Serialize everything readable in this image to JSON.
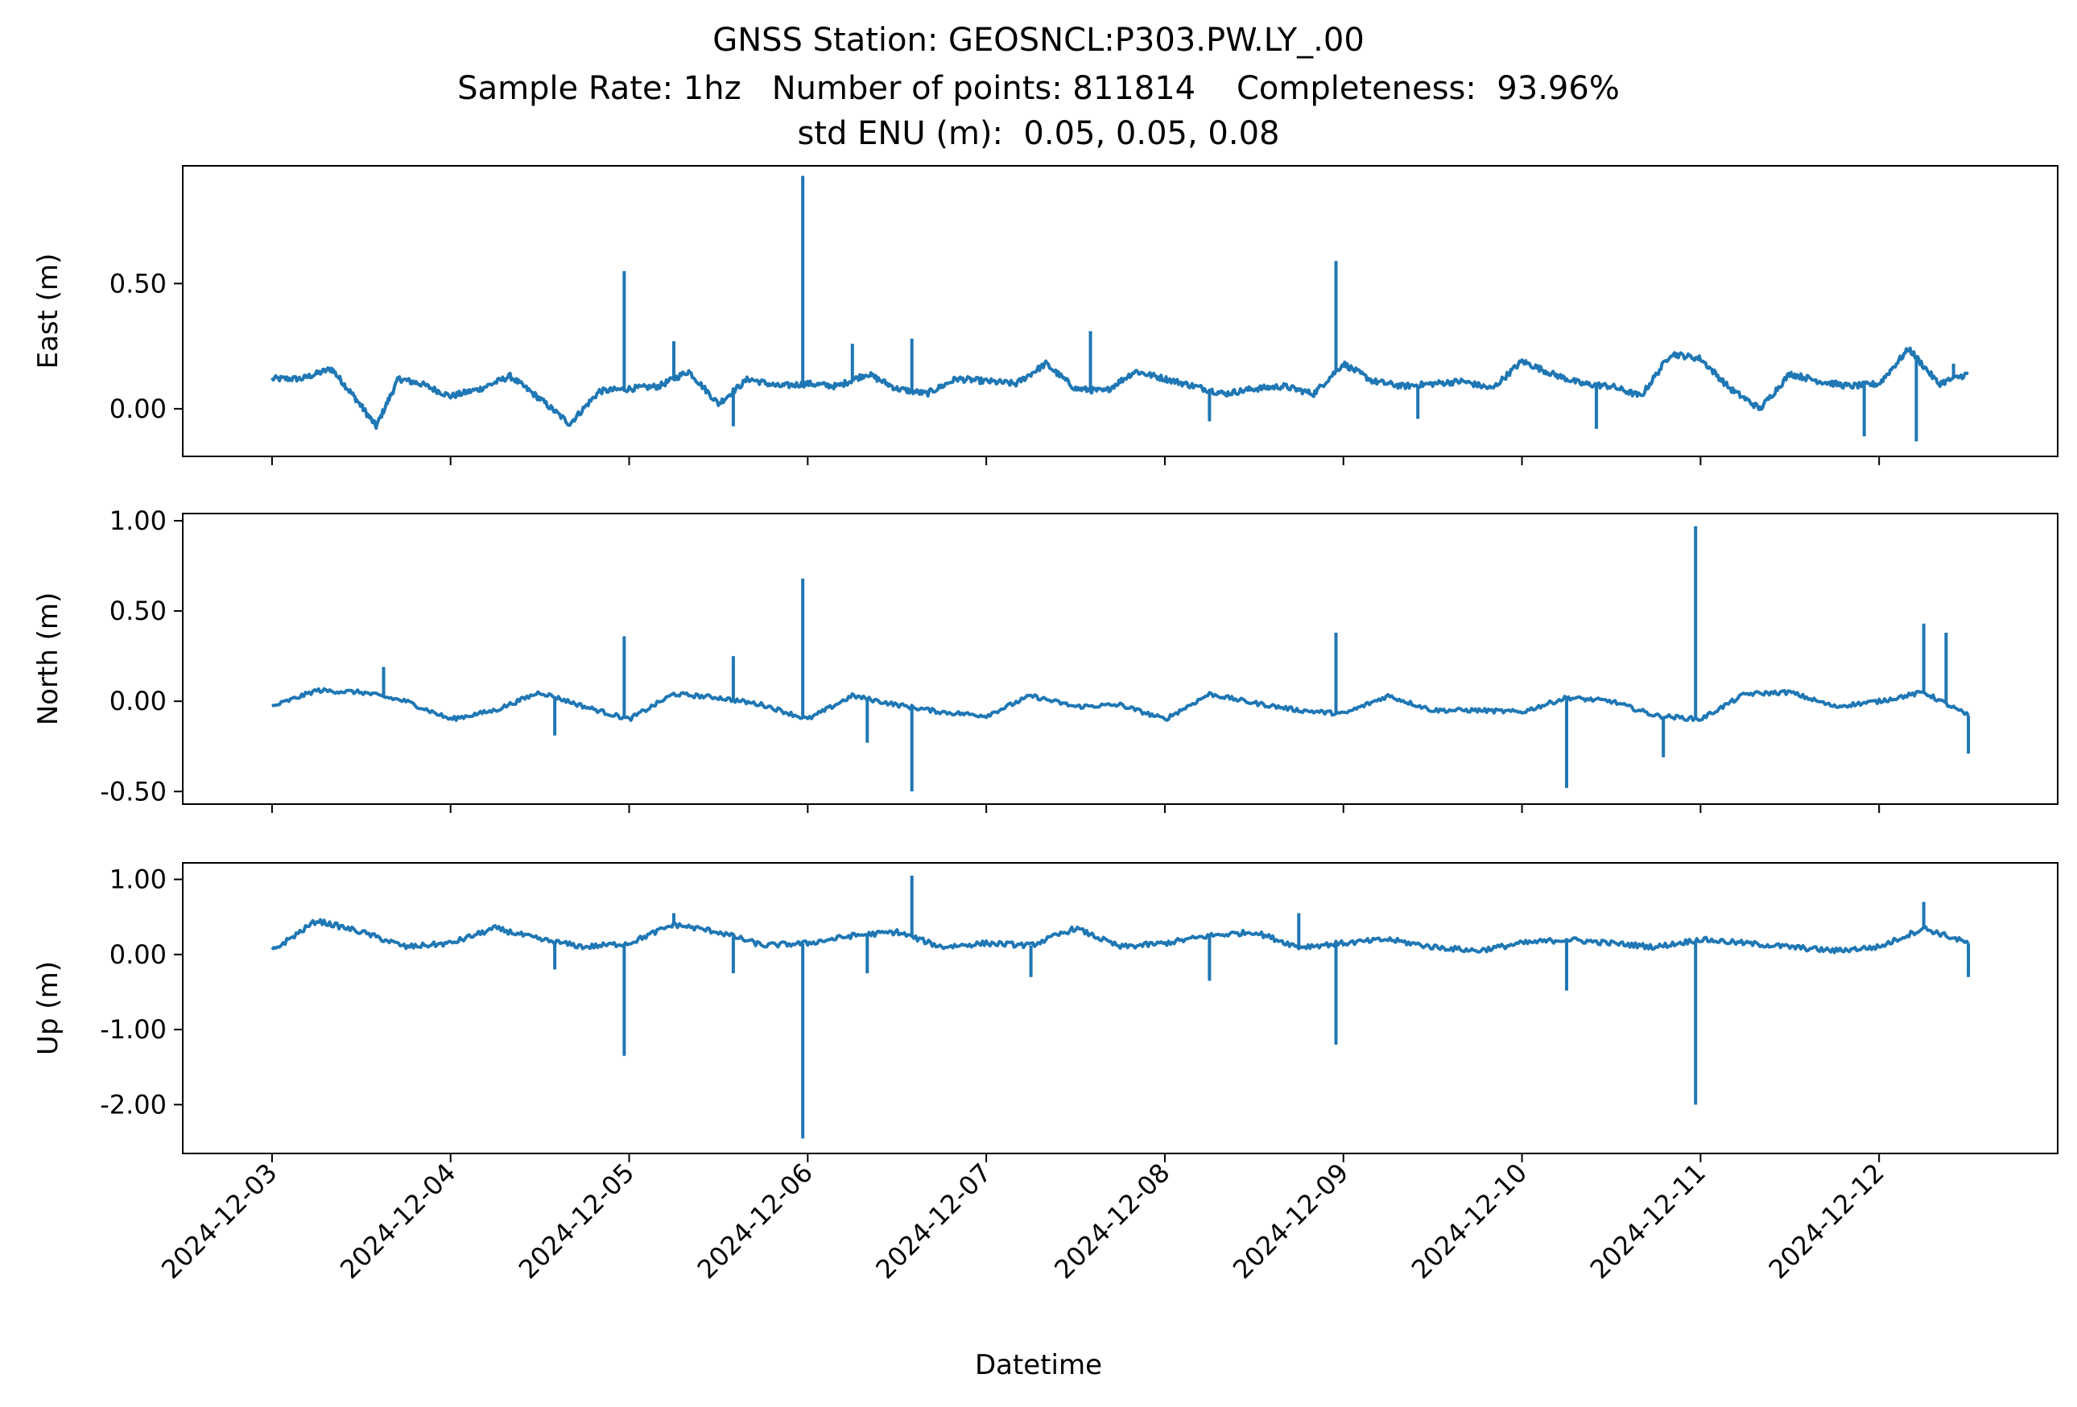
{
  "chart_data": {
    "type": "line",
    "title": "GNSS Station: GEOSNCL:P303.PW.LY_.00",
    "subtitle": "Sample Rate: 1hz   Number of points: 811814    Completeness:  93.96%",
    "subtitle2": "std ENU (m):  0.05, 0.05, 0.08",
    "xlabel": "Datetime",
    "x_ticks": [
      "2024-12-03",
      "2024-12-04",
      "2024-12-05",
      "2024-12-06",
      "2024-12-07",
      "2024-12-08",
      "2024-12-09",
      "2024-12-10",
      "2024-12-11",
      "2024-12-12"
    ],
    "x_range": [
      "2024-12-02 12:00",
      "2024-12-13 00:00"
    ],
    "line_color": "#1f77b4",
    "grid": false,
    "panels": [
      {
        "name": "East",
        "ylabel": "East (m)",
        "ylim": [
          -0.19,
          0.97
        ],
        "yticks": [
          0.0,
          0.5
        ],
        "ytick_labels": [
          "0.00",
          "0.50"
        ],
        "series": [
          {
            "x": "2024-12-03 00:00",
            "y": 0.12
          },
          {
            "x": "2024-12-03 04:00",
            "y": 0.12
          },
          {
            "x": "2024-12-03 08:00",
            "y": 0.16
          },
          {
            "x": "2024-12-03 11:00",
            "y": 0.05
          },
          {
            "x": "2024-12-03 14:00",
            "y": -0.07
          },
          {
            "x": "2024-12-03 17:00",
            "y": 0.12
          },
          {
            "x": "2024-12-03 20:00",
            "y": 0.1
          },
          {
            "x": "2024-12-04 00:00",
            "y": 0.05
          },
          {
            "x": "2024-12-04 04:00",
            "y": 0.08
          },
          {
            "x": "2024-12-04 08:00",
            "y": 0.13
          },
          {
            "x": "2024-12-04 12:00",
            "y": 0.04
          },
          {
            "x": "2024-12-04 16:00",
            "y": -0.06
          },
          {
            "x": "2024-12-04 20:00",
            "y": 0.07
          },
          {
            "x": "2024-12-05 00:00",
            "y": 0.08
          },
          {
            "x": "2024-12-05 04:00",
            "y": 0.09
          },
          {
            "x": "2024-12-05 08:00",
            "y": 0.15
          },
          {
            "x": "2024-12-05 12:00",
            "y": 0.02
          },
          {
            "x": "2024-12-05 16:00",
            "y": 0.12
          },
          {
            "x": "2024-12-05 20:00",
            "y": 0.09
          },
          {
            "x": "2024-12-06 00:00",
            "y": 0.1
          },
          {
            "x": "2024-12-06 04:00",
            "y": 0.09
          },
          {
            "x": "2024-12-06 08:00",
            "y": 0.14
          },
          {
            "x": "2024-12-06 12:00",
            "y": 0.08
          },
          {
            "x": "2024-12-06 16:00",
            "y": 0.06
          },
          {
            "x": "2024-12-06 20:00",
            "y": 0.12
          },
          {
            "x": "2024-12-07 00:00",
            "y": 0.11
          },
          {
            "x": "2024-12-07 04:00",
            "y": 0.1
          },
          {
            "x": "2024-12-07 08:00",
            "y": 0.18
          },
          {
            "x": "2024-12-07 12:00",
            "y": 0.08
          },
          {
            "x": "2024-12-07 16:00",
            "y": 0.07
          },
          {
            "x": "2024-12-07 20:00",
            "y": 0.15
          },
          {
            "x": "2024-12-08 00:00",
            "y": 0.12
          },
          {
            "x": "2024-12-08 04:00",
            "y": 0.09
          },
          {
            "x": "2024-12-08 08:00",
            "y": 0.06
          },
          {
            "x": "2024-12-08 12:00",
            "y": 0.08
          },
          {
            "x": "2024-12-08 16:00",
            "y": 0.09
          },
          {
            "x": "2024-12-08 20:00",
            "y": 0.06
          },
          {
            "x": "2024-12-09 00:00",
            "y": 0.18
          },
          {
            "x": "2024-12-09 04:00",
            "y": 0.11
          },
          {
            "x": "2024-12-09 08:00",
            "y": 0.09
          },
          {
            "x": "2024-12-09 12:00",
            "y": 0.1
          },
          {
            "x": "2024-12-09 16:00",
            "y": 0.11
          },
          {
            "x": "2024-12-09 20:00",
            "y": 0.08
          },
          {
            "x": "2024-12-10 00:00",
            "y": 0.19
          },
          {
            "x": "2024-12-10 04:00",
            "y": 0.14
          },
          {
            "x": "2024-12-10 08:00",
            "y": 0.1
          },
          {
            "x": "2024-12-10 12:00",
            "y": 0.09
          },
          {
            "x": "2024-12-10 16:00",
            "y": 0.05
          },
          {
            "x": "2024-12-10 20:00",
            "y": 0.22
          },
          {
            "x": "2024-12-11 00:00",
            "y": 0.2
          },
          {
            "x": "2024-12-11 04:00",
            "y": 0.08
          },
          {
            "x": "2024-12-11 08:00",
            "y": 0.0
          },
          {
            "x": "2024-12-11 12:00",
            "y": 0.14
          },
          {
            "x": "2024-12-11 16:00",
            "y": 0.11
          },
          {
            "x": "2024-12-11 20:00",
            "y": 0.09
          },
          {
            "x": "2024-12-12 00:00",
            "y": 0.1
          },
          {
            "x": "2024-12-12 04:00",
            "y": 0.24
          },
          {
            "x": "2024-12-12 08:00",
            "y": 0.1
          },
          {
            "x": "2024-12-12 12:00",
            "y": 0.14
          }
        ],
        "spikes": [
          {
            "x": "2024-12-04 23:20",
            "y": 0.55
          },
          {
            "x": "2024-12-05 23:20",
            "y": 0.93
          },
          {
            "x": "2024-12-08 23:00",
            "y": 0.59
          },
          {
            "x": "2024-12-07 14:00",
            "y": 0.31
          },
          {
            "x": "2024-12-06 14:00",
            "y": 0.28
          },
          {
            "x": "2024-12-06 06:00",
            "y": 0.26
          },
          {
            "x": "2024-12-05 06:00",
            "y": 0.27
          },
          {
            "x": "2024-12-05 14:00",
            "y": -0.07
          },
          {
            "x": "2024-12-11 22:00",
            "y": -0.11
          },
          {
            "x": "2024-12-12 05:00",
            "y": -0.13
          },
          {
            "x": "2024-12-10 10:00",
            "y": -0.08
          },
          {
            "x": "2024-12-12 10:00",
            "y": 0.18
          },
          {
            "x": "2024-12-09 10:00",
            "y": -0.04
          },
          {
            "x": "2024-12-08 06:00",
            "y": -0.05
          }
        ]
      },
      {
        "name": "North",
        "ylabel": "North (m)",
        "ylim": [
          -0.57,
          1.04
        ],
        "yticks": [
          -0.5,
          0.0,
          0.5,
          1.0
        ],
        "ytick_labels": [
          "-0.50",
          "0.00",
          "0.50",
          "1.00"
        ],
        "series": [
          {
            "x": "2024-12-03 00:00",
            "y": -0.03
          },
          {
            "x": "2024-12-03 06:00",
            "y": 0.06
          },
          {
            "x": "2024-12-03 12:00",
            "y": 0.05
          },
          {
            "x": "2024-12-03 18:00",
            "y": 0.0
          },
          {
            "x": "2024-12-04 00:00",
            "y": -0.1
          },
          {
            "x": "2024-12-04 06:00",
            "y": -0.05
          },
          {
            "x": "2024-12-04 12:00",
            "y": 0.05
          },
          {
            "x": "2024-12-04 18:00",
            "y": -0.03
          },
          {
            "x": "2024-12-05 00:00",
            "y": -0.1
          },
          {
            "x": "2024-12-05 06:00",
            "y": 0.04
          },
          {
            "x": "2024-12-05 12:00",
            "y": 0.02
          },
          {
            "x": "2024-12-05 18:00",
            "y": -0.02
          },
          {
            "x": "2024-12-06 00:00",
            "y": -0.1
          },
          {
            "x": "2024-12-06 06:00",
            "y": 0.03
          },
          {
            "x": "2024-12-06 12:00",
            "y": -0.02
          },
          {
            "x": "2024-12-06 18:00",
            "y": -0.06
          },
          {
            "x": "2024-12-07 00:00",
            "y": -0.08
          },
          {
            "x": "2024-12-07 06:00",
            "y": 0.03
          },
          {
            "x": "2024-12-07 12:00",
            "y": -0.03
          },
          {
            "x": "2024-12-07 18:00",
            "y": -0.02
          },
          {
            "x": "2024-12-08 00:00",
            "y": -0.1
          },
          {
            "x": "2024-12-08 06:00",
            "y": 0.04
          },
          {
            "x": "2024-12-08 12:00",
            "y": -0.01
          },
          {
            "x": "2024-12-08 18:00",
            "y": -0.05
          },
          {
            "x": "2024-12-09 00:00",
            "y": -0.07
          },
          {
            "x": "2024-12-09 06:00",
            "y": 0.03
          },
          {
            "x": "2024-12-09 12:00",
            "y": -0.05
          },
          {
            "x": "2024-12-09 18:00",
            "y": -0.05
          },
          {
            "x": "2024-12-10 00:00",
            "y": -0.06
          },
          {
            "x": "2024-12-10 06:00",
            "y": 0.02
          },
          {
            "x": "2024-12-10 12:00",
            "y": 0.0
          },
          {
            "x": "2024-12-10 18:00",
            "y": -0.08
          },
          {
            "x": "2024-12-11 00:00",
            "y": -0.1
          },
          {
            "x": "2024-12-11 06:00",
            "y": 0.04
          },
          {
            "x": "2024-12-11 12:00",
            "y": 0.05
          },
          {
            "x": "2024-12-11 18:00",
            "y": -0.03
          },
          {
            "x": "2024-12-12 00:00",
            "y": 0.0
          },
          {
            "x": "2024-12-12 06:00",
            "y": 0.05
          },
          {
            "x": "2024-12-12 12:00",
            "y": -0.08
          }
        ],
        "spikes": [
          {
            "x": "2024-12-04 23:20",
            "y": 0.36
          },
          {
            "x": "2024-12-05 23:20",
            "y": 0.68
          },
          {
            "x": "2024-12-08 23:00",
            "y": 0.38
          },
          {
            "x": "2024-12-10 23:20",
            "y": 0.97
          },
          {
            "x": "2024-12-12 06:00",
            "y": 0.43
          },
          {
            "x": "2024-12-12 09:00",
            "y": 0.38
          },
          {
            "x": "2024-12-06 14:00",
            "y": -0.5
          },
          {
            "x": "2024-12-10 06:00",
            "y": -0.48
          },
          {
            "x": "2024-12-10 19:00",
            "y": -0.31
          },
          {
            "x": "2024-12-12 12:00",
            "y": -0.29
          },
          {
            "x": "2024-12-05 14:00",
            "y": 0.25
          },
          {
            "x": "2024-12-03 15:00",
            "y": 0.19
          },
          {
            "x": "2024-12-06 08:00",
            "y": -0.23
          },
          {
            "x": "2024-12-04 14:00",
            "y": -0.19
          }
        ]
      },
      {
        "name": "Up",
        "ylabel": "Up (m)",
        "ylim": [
          -2.65,
          1.22
        ],
        "yticks": [
          -2.0,
          -1.0,
          0.0,
          1.0
        ],
        "ytick_labels": [
          "-2.00",
          "-1.00",
          "0.00",
          "1.00"
        ],
        "series": [
          {
            "x": "2024-12-03 00:00",
            "y": 0.05
          },
          {
            "x": "2024-12-03 06:00",
            "y": 0.45
          },
          {
            "x": "2024-12-03 12:00",
            "y": 0.3
          },
          {
            "x": "2024-12-03 18:00",
            "y": 0.1
          },
          {
            "x": "2024-12-04 00:00",
            "y": 0.15
          },
          {
            "x": "2024-12-04 06:00",
            "y": 0.35
          },
          {
            "x": "2024-12-04 12:00",
            "y": 0.2
          },
          {
            "x": "2024-12-04 18:00",
            "y": 0.1
          },
          {
            "x": "2024-12-05 00:00",
            "y": 0.15
          },
          {
            "x": "2024-12-05 06:00",
            "y": 0.4
          },
          {
            "x": "2024-12-05 12:00",
            "y": 0.3
          },
          {
            "x": "2024-12-05 18:00",
            "y": 0.12
          },
          {
            "x": "2024-12-06 00:00",
            "y": 0.15
          },
          {
            "x": "2024-12-06 06:00",
            "y": 0.25
          },
          {
            "x": "2024-12-06 12:00",
            "y": 0.3
          },
          {
            "x": "2024-12-06 18:00",
            "y": 0.1
          },
          {
            "x": "2024-12-07 00:00",
            "y": 0.15
          },
          {
            "x": "2024-12-07 06:00",
            "y": 0.12
          },
          {
            "x": "2024-12-07 12:00",
            "y": 0.35
          },
          {
            "x": "2024-12-07 18:00",
            "y": 0.1
          },
          {
            "x": "2024-12-08 00:00",
            "y": 0.15
          },
          {
            "x": "2024-12-08 06:00",
            "y": 0.25
          },
          {
            "x": "2024-12-08 12:00",
            "y": 0.3
          },
          {
            "x": "2024-12-08 18:00",
            "y": 0.1
          },
          {
            "x": "2024-12-09 00:00",
            "y": 0.15
          },
          {
            "x": "2024-12-09 06:00",
            "y": 0.2
          },
          {
            "x": "2024-12-09 12:00",
            "y": 0.1
          },
          {
            "x": "2024-12-09 18:00",
            "y": 0.05
          },
          {
            "x": "2024-12-10 00:00",
            "y": 0.15
          },
          {
            "x": "2024-12-10 06:00",
            "y": 0.2
          },
          {
            "x": "2024-12-10 12:00",
            "y": 0.15
          },
          {
            "x": "2024-12-10 18:00",
            "y": 0.1
          },
          {
            "x": "2024-12-11 00:00",
            "y": 0.2
          },
          {
            "x": "2024-12-11 06:00",
            "y": 0.15
          },
          {
            "x": "2024-12-11 12:00",
            "y": 0.1
          },
          {
            "x": "2024-12-11 18:00",
            "y": 0.05
          },
          {
            "x": "2024-12-12 00:00",
            "y": 0.1
          },
          {
            "x": "2024-12-12 06:00",
            "y": 0.35
          },
          {
            "x": "2024-12-12 12:00",
            "y": 0.15
          }
        ],
        "spikes": [
          {
            "x": "2024-12-04 23:20",
            "y": -1.35
          },
          {
            "x": "2024-12-05 23:20",
            "y": -2.45
          },
          {
            "x": "2024-12-08 23:00",
            "y": -1.2
          },
          {
            "x": "2024-12-10 23:20",
            "y": -2.0
          },
          {
            "x": "2024-12-06 14:00",
            "y": 1.05
          },
          {
            "x": "2024-12-12 06:00",
            "y": 0.7
          },
          {
            "x": "2024-12-10 06:00",
            "y": -0.48
          },
          {
            "x": "2024-12-12 12:00",
            "y": -0.3
          },
          {
            "x": "2024-12-08 06:00",
            "y": -0.35
          },
          {
            "x": "2024-12-05 14:00",
            "y": -0.25
          },
          {
            "x": "2024-12-04 14:00",
            "y": -0.2
          },
          {
            "x": "2024-12-07 06:00",
            "y": -0.3
          },
          {
            "x": "2024-12-06 08:00",
            "y": -0.25
          },
          {
            "x": "2024-12-05 06:00",
            "y": 0.55
          },
          {
            "x": "2024-12-08 18:00",
            "y": 0.55
          }
        ]
      }
    ]
  }
}
